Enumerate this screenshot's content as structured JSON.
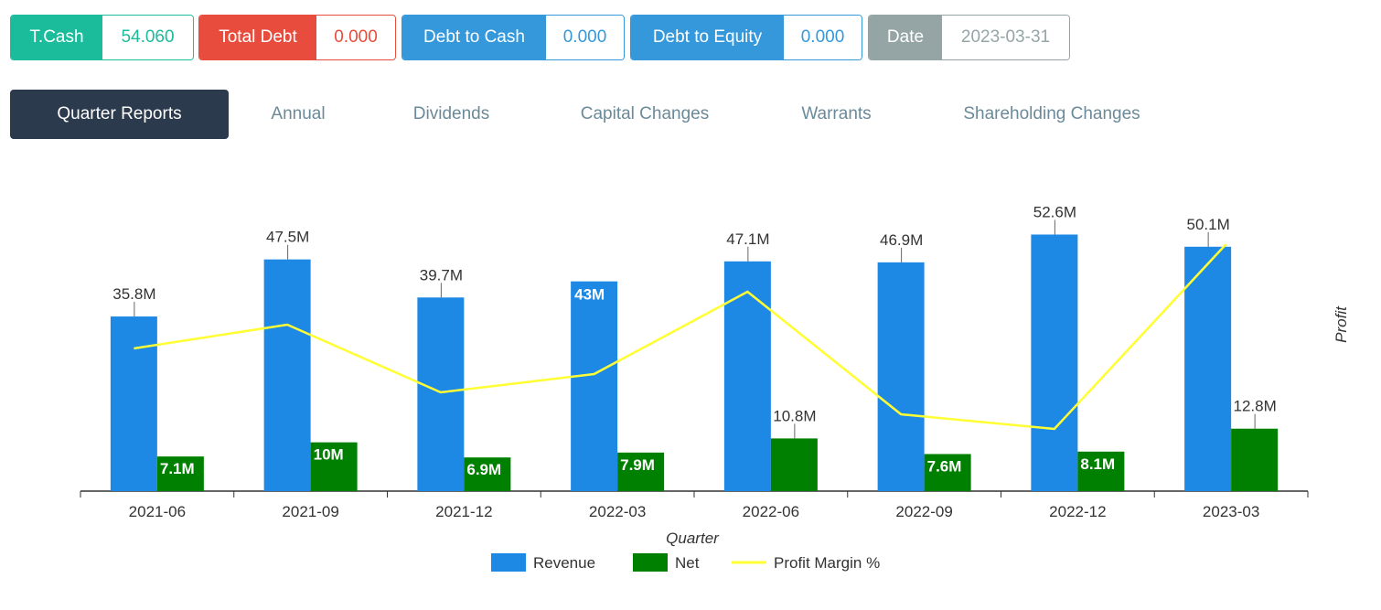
{
  "stats": [
    {
      "label": "T.Cash",
      "value": "54.060",
      "color": "#1abc9c",
      "value_color": "#1abc9c"
    },
    {
      "label": "Total Debt",
      "value": "0.000",
      "color": "#e74c3c",
      "value_color": "#e74c3c"
    },
    {
      "label": "Debt to Cash",
      "value": "0.000",
      "color": "#3498db",
      "value_color": "#3498db"
    },
    {
      "label": "Debt to Equity",
      "value": "0.000",
      "color": "#3498db",
      "value_color": "#3498db"
    },
    {
      "label": "Date",
      "value": "2023-03-31",
      "color": "#95a5a6",
      "value_color": "#95a5a6"
    }
  ],
  "tabs": [
    "Quarter Reports",
    "Annual",
    "Dividends",
    "Capital Changes",
    "Warrants",
    "Shareholding Changes"
  ],
  "active_tab": 0,
  "chart_data": {
    "type": "bar",
    "categories": [
      "2021-06",
      "2021-09",
      "2021-12",
      "2022-03",
      "2022-06",
      "2022-09",
      "2022-12",
      "2023-03"
    ],
    "xlabel": "Quarter",
    "ylabel_right": "Profit",
    "series": [
      {
        "name": "Revenue",
        "type": "bar",
        "color": "#1e88e5",
        "values": [
          35.8,
          47.5,
          39.7,
          43,
          47.1,
          46.9,
          52.6,
          50.1
        ],
        "labels": [
          "35.8M",
          "47.5M",
          "39.7M",
          "43M",
          "47.1M",
          "46.9M",
          "52.6M",
          "50.1M"
        ]
      },
      {
        "name": "Net",
        "type": "bar",
        "color": "#008000",
        "values": [
          7.1,
          10,
          6.9,
          7.9,
          10.8,
          7.6,
          8.1,
          12.8
        ],
        "labels": [
          "7.1M",
          "10M",
          "6.9M",
          "7.9M",
          "10.8M",
          "7.6M",
          "8.1M",
          "12.8M"
        ]
      },
      {
        "name": "Profit Margin %",
        "type": "line",
        "color": "#ffff33",
        "values": [
          19.8,
          21.1,
          17.4,
          18.4,
          22.9,
          16.2,
          15.4,
          25.5
        ]
      }
    ],
    "ylim": [
      0,
      60
    ],
    "y2lim": [
      12,
      28
    ],
    "legend_position": "bottom-center"
  }
}
